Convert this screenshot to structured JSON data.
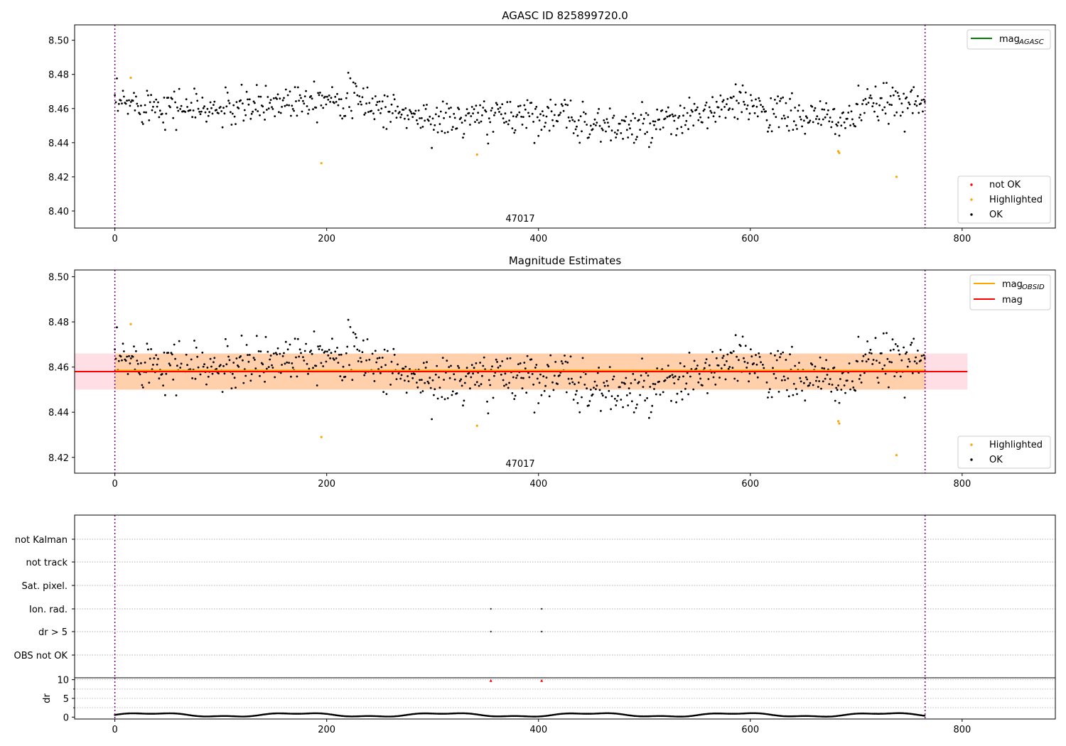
{
  "chart_data": [
    {
      "type": "scatter",
      "title": "AGASC ID 825899720.0",
      "ylim": [
        8.39,
        8.509
      ],
      "xlim": [
        -38,
        888
      ],
      "xticks": [
        0,
        200,
        400,
        600,
        800
      ],
      "yticks": [
        "8.40",
        "8.42",
        "8.44",
        "8.46",
        "8.48",
        "8.50"
      ],
      "annotation": "47017",
      "vlines": [
        0,
        765
      ],
      "lines": [
        {
          "name": "mag_AGASC",
          "color": "#008000",
          "y": null
        }
      ],
      "legend_lines": {
        "position": "upper right",
        "items": [
          {
            "label": "mag",
            "sub": "AGASC",
            "color": "#008000"
          }
        ]
      },
      "legend_points": {
        "position": "lower right",
        "items": [
          {
            "label": "not OK",
            "color": "#ff0000"
          },
          {
            "label": "Highlighted",
            "color": "#ffa500"
          },
          {
            "label": "OK",
            "color": "#000000"
          }
        ]
      },
      "highlighted": [
        [
          15,
          8.478
        ],
        [
          195,
          8.428
        ],
        [
          342,
          8.433
        ],
        [
          683,
          8.435
        ],
        [
          684,
          8.434
        ],
        [
          738,
          8.42
        ]
      ],
      "ok_points_estimated": true
    },
    {
      "type": "scatter",
      "title": "Magnitude Estimates",
      "ylim": [
        8.413,
        8.503
      ],
      "xlim": [
        -38,
        888
      ],
      "xticks": [
        0,
        200,
        400,
        600,
        800
      ],
      "yticks": [
        "8.42",
        "8.44",
        "8.46",
        "8.48",
        "8.50"
      ],
      "annotation": "47017",
      "vlines": [
        0,
        765
      ],
      "bands": [
        {
          "name": "mag band",
          "x": [
            -38,
            805
          ],
          "y": [
            8.45,
            8.466
          ],
          "color": "#ffc0cb"
        },
        {
          "name": "mag_OBSID band",
          "x": [
            0,
            765
          ],
          "y": [
            8.45,
            8.466
          ],
          "color": "#ffa500"
        }
      ],
      "lines": [
        {
          "name": "mag_OBSID",
          "color": "#ffa500",
          "y": 8.4585,
          "x": [
            0,
            765
          ]
        },
        {
          "name": "mag",
          "color": "#ff0000",
          "y": 8.458,
          "x": [
            -38,
            805
          ]
        }
      ],
      "legend_lines": {
        "position": "upper right",
        "items": [
          {
            "label": "mag",
            "sub": "OBSID",
            "color": "#ffa500"
          },
          {
            "label": "mag",
            "sub": "",
            "color": "#ff0000"
          }
        ]
      },
      "legend_points": {
        "position": "lower right",
        "items": [
          {
            "label": "Highlighted",
            "color": "#ffa500"
          },
          {
            "label": "OK",
            "color": "#000000"
          }
        ]
      },
      "highlighted": [
        [
          15,
          8.479
        ],
        [
          195,
          8.429
        ],
        [
          342,
          8.434
        ],
        [
          683,
          8.436
        ],
        [
          684,
          8.435
        ],
        [
          738,
          8.421
        ]
      ]
    },
    {
      "type": "scatter",
      "title": "",
      "xlim": [
        -38,
        888
      ],
      "xticks": [
        0,
        200,
        400,
        600,
        800
      ],
      "categories": [
        "not Kalman",
        "not track",
        "Sat. pixel.",
        "Ion. rad.",
        "dr > 5",
        "OBS not OK"
      ],
      "vlines": [
        0,
        765
      ],
      "flag_points": [
        {
          "category": "Ion. rad.",
          "x": [
            355,
            403
          ]
        },
        {
          "category": "dr > 5",
          "x": [
            355,
            403
          ]
        }
      ]
    },
    {
      "type": "scatter",
      "title": "",
      "ylabel": "dr",
      "ylim": [
        -0.5,
        10.5
      ],
      "xlim": [
        -38,
        888
      ],
      "xticks": [
        0,
        200,
        400,
        600,
        800
      ],
      "yticks": [
        "0",
        "5",
        "10"
      ],
      "vlines": [
        0,
        765
      ],
      "red_points": [
        [
          355,
          9.8
        ],
        [
          403,
          9.8
        ]
      ]
    }
  ]
}
